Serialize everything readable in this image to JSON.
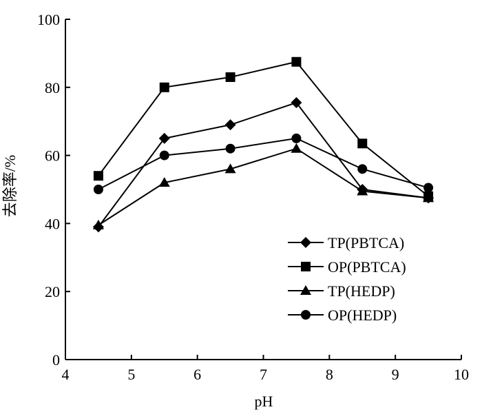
{
  "chart_data": {
    "type": "line",
    "xlabel": "pH",
    "ylabel": "去除率/%",
    "xlim": [
      4,
      10
    ],
    "ylim": [
      0,
      100
    ],
    "xticks": [
      4,
      5,
      6,
      7,
      8,
      9,
      10
    ],
    "yticks": [
      0,
      20,
      40,
      60,
      80,
      100
    ],
    "grid": false,
    "legend_position": "lower-right",
    "x": [
      4.5,
      5.5,
      6.5,
      7.5,
      8.5,
      9.5
    ],
    "series": [
      {
        "name": "TP(PBTCA)",
        "marker": "diamond",
        "values": [
          39,
          65,
          69,
          75.5,
          50,
          47.5
        ]
      },
      {
        "name": "OP(PBTCA)",
        "marker": "square",
        "values": [
          54,
          80,
          83,
          87.5,
          63.5,
          48
        ]
      },
      {
        "name": "TP(HEDP)",
        "marker": "triangle",
        "values": [
          39.5,
          52,
          56,
          62,
          49.5,
          47.5
        ]
      },
      {
        "name": "OP(HEDP)",
        "marker": "circle",
        "values": [
          50,
          60,
          62,
          65,
          56,
          50.5
        ]
      }
    ]
  }
}
